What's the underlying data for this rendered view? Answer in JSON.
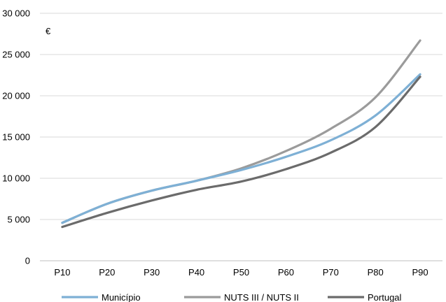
{
  "chart_data": {
    "type": "line",
    "title": "",
    "xlabel": "",
    "ylabel": "",
    "unit": "€",
    "categories": [
      "P10",
      "P20",
      "P30",
      "P40",
      "P50",
      "P60",
      "P70",
      "P80",
      "P90"
    ],
    "y_ticks": [
      "0",
      "5 000",
      "10 000",
      "15 000",
      "20 000",
      "25 000",
      "30 000"
    ],
    "ylim": [
      0,
      30000
    ],
    "grid": true,
    "legend_position": "bottom",
    "series": [
      {
        "name": "Município",
        "color": "#7EB0D5",
        "values": [
          4600,
          6900,
          8500,
          9700,
          11000,
          12600,
          14600,
          17600,
          22600
        ]
      },
      {
        "name": "NUTS III / NUTS II",
        "color": "#9B9B9B",
        "values": [
          4600,
          6900,
          8500,
          9700,
          11200,
          13300,
          16000,
          19800,
          26700
        ]
      },
      {
        "name": "Portugal",
        "color": "#6B6B6B",
        "values": [
          4100,
          5800,
          7300,
          8600,
          9600,
          11100,
          13100,
          16200,
          22300
        ]
      }
    ]
  }
}
